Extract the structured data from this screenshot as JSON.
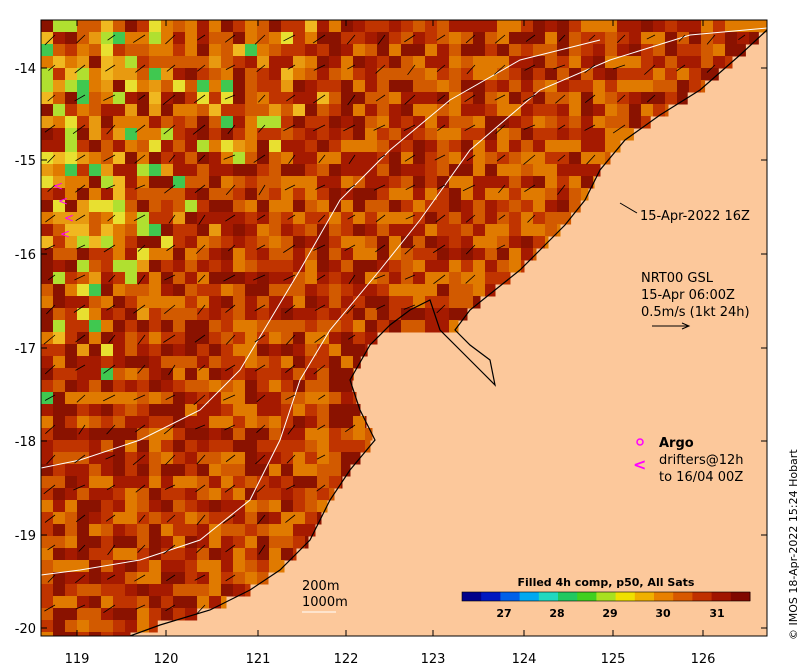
{
  "map": {
    "lon_range": [
      118.6,
      126.8
    ],
    "lat_range": [
      -20.1,
      -13.5
    ],
    "x_ticks": [
      "119",
      "120",
      "121",
      "122",
      "123",
      "124",
      "125",
      "126"
    ],
    "y_ticks": [
      "-14",
      "-15",
      "-16",
      "-17",
      "-18",
      "-19",
      "-20"
    ],
    "land_color": "#fcc89b",
    "ocean_palette": [
      "#8a1200",
      "#a51a00",
      "#c03400",
      "#d25a00",
      "#e07a00",
      "#e89a10",
      "#f0b820",
      "#e8e030",
      "#b0e030",
      "#40c850"
    ],
    "isobath_color": "#ffffff",
    "coast_color": "#000000"
  },
  "annotations": {
    "date_label": "15-Apr-2022 16Z",
    "current_label_1": "NRT00 GSL",
    "current_label_2": "15-Apr 06:00Z",
    "current_label_3": "0.5m/s (1kt 24h)",
    "argo_label": "Argo",
    "drifters_label_1": "drifters@12h",
    "drifters_label_2": "to 16/04 00Z",
    "isobath_200": "200m",
    "isobath_1000": "1000m",
    "argo_color": "#ff00ff"
  },
  "colorbar": {
    "title": "Filled 4h comp, p50, All Sats",
    "ticks": [
      "27",
      "28",
      "29",
      "30",
      "31"
    ],
    "colors": [
      "#00008a",
      "#0018c0",
      "#0060e8",
      "#00a8f0",
      "#20d8c0",
      "#20c860",
      "#40d020",
      "#a8e020",
      "#f0e000",
      "#f0b000",
      "#e88000",
      "#d85800",
      "#c03000",
      "#a01400",
      "#800800"
    ]
  },
  "credit": "© IMOS 18-Apr-2022 15:24 Hobart"
}
